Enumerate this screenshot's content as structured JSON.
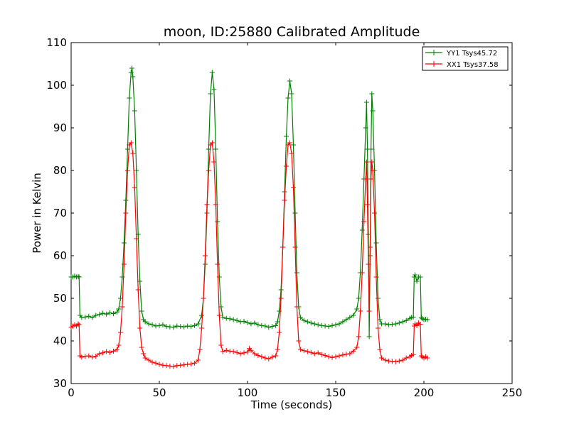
{
  "chart_data": {
    "type": "line",
    "title": "moon, ID:25880 Calibrated Amplitude",
    "xlabel": "Time (seconds)",
    "ylabel": "Power in Kelvin",
    "xlim": [
      0,
      250
    ],
    "ylim": [
      30,
      110
    ],
    "xticks": [
      "0",
      "50",
      "100",
      "150",
      "200",
      "250"
    ],
    "yticks": [
      "30",
      "40",
      "50",
      "60",
      "70",
      "80",
      "90",
      "100",
      "110"
    ],
    "grid": false,
    "legend_position": "top-right",
    "series": [
      {
        "name": "YY1 Tsys45.72",
        "color": "#008000",
        "marker": "+",
        "points": [
          [
            0,
            55
          ],
          [
            1,
            55
          ],
          [
            2,
            55.2
          ],
          [
            3,
            55
          ],
          [
            4,
            55.1
          ],
          [
            4.5,
            55
          ],
          [
            5,
            46
          ],
          [
            6,
            45.5
          ],
          [
            8,
            45.6
          ],
          [
            10,
            45.8
          ],
          [
            12,
            45.5
          ],
          [
            14,
            46
          ],
          [
            16,
            46.2
          ],
          [
            18,
            46.5
          ],
          [
            20,
            46.3
          ],
          [
            22,
            46.6
          ],
          [
            24,
            46.4
          ],
          [
            26,
            46.8
          ],
          [
            27,
            47.5
          ],
          [
            28,
            50
          ],
          [
            29,
            55
          ],
          [
            30,
            63
          ],
          [
            31,
            73
          ],
          [
            32,
            85
          ],
          [
            33,
            97
          ],
          [
            34,
            103
          ],
          [
            34.5,
            104
          ],
          [
            35,
            102
          ],
          [
            36,
            94
          ],
          [
            37,
            80
          ],
          [
            38,
            65
          ],
          [
            39,
            54
          ],
          [
            40,
            47
          ],
          [
            41,
            45
          ],
          [
            42,
            44.5
          ],
          [
            44,
            44
          ],
          [
            46,
            43.8
          ],
          [
            48,
            43.5
          ],
          [
            50,
            43.6
          ],
          [
            52,
            43.8
          ],
          [
            54,
            43.4
          ],
          [
            56,
            43.3
          ],
          [
            58,
            43.2
          ],
          [
            60,
            43.5
          ],
          [
            62,
            43.4
          ],
          [
            64,
            43.3
          ],
          [
            66,
            43.5
          ],
          [
            68,
            43.4
          ],
          [
            70,
            43.6
          ],
          [
            72,
            44
          ],
          [
            74,
            46
          ],
          [
            75,
            50
          ],
          [
            76,
            58
          ],
          [
            77,
            70
          ],
          [
            78,
            85
          ],
          [
            79,
            98
          ],
          [
            80,
            103
          ],
          [
            81,
            99
          ],
          [
            82,
            85
          ],
          [
            83,
            68
          ],
          [
            84,
            55
          ],
          [
            85,
            48
          ],
          [
            86,
            45.5
          ],
          [
            88,
            45.3
          ],
          [
            90,
            45.2
          ],
          [
            92,
            45
          ],
          [
            94,
            44.8
          ],
          [
            96,
            44.5
          ],
          [
            98,
            44.6
          ],
          [
            100,
            44.3
          ],
          [
            102,
            44
          ],
          [
            104,
            44.2
          ],
          [
            106,
            43.8
          ],
          [
            108,
            43.6
          ],
          [
            110,
            43.5
          ],
          [
            112,
            43.2
          ],
          [
            114,
            43.4
          ],
          [
            116,
            43.6
          ],
          [
            117,
            44.5
          ],
          [
            118,
            47
          ],
          [
            119,
            52
          ],
          [
            120,
            62
          ],
          [
            121,
            75
          ],
          [
            122,
            88
          ],
          [
            123,
            97
          ],
          [
            124,
            101
          ],
          [
            125,
            98
          ],
          [
            126,
            86
          ],
          [
            127,
            70
          ],
          [
            128,
            56
          ],
          [
            129,
            48
          ],
          [
            130,
            45.5
          ],
          [
            132,
            44.8
          ],
          [
            134,
            44.5
          ],
          [
            136,
            44.2
          ],
          [
            138,
            44
          ],
          [
            140,
            43.8
          ],
          [
            142,
            43.6
          ],
          [
            144,
            43.5
          ],
          [
            146,
            43.4
          ],
          [
            148,
            43.6
          ],
          [
            150,
            43.8
          ],
          [
            152,
            44
          ],
          [
            154,
            44.5
          ],
          [
            156,
            45
          ],
          [
            158,
            45.5
          ],
          [
            160,
            46
          ],
          [
            162,
            47.5
          ],
          [
            163,
            50
          ],
          [
            164,
            56
          ],
          [
            165,
            66
          ],
          [
            166,
            78
          ],
          [
            167,
            90
          ],
          [
            167.5,
            96
          ],
          [
            168,
            85
          ],
          [
            168.5,
            65
          ],
          [
            169,
            41
          ],
          [
            169.5,
            60
          ],
          [
            170,
            85
          ],
          [
            170.5,
            98
          ],
          [
            171,
            94
          ],
          [
            172,
            80
          ],
          [
            173,
            63
          ],
          [
            174,
            50
          ],
          [
            175,
            45
          ],
          [
            176,
            44
          ],
          [
            178,
            44
          ],
          [
            180,
            43.8
          ],
          [
            182,
            43.9
          ],
          [
            184,
            44
          ],
          [
            186,
            44.2
          ],
          [
            188,
            44.5
          ],
          [
            190,
            44.8
          ],
          [
            192,
            45.3
          ],
          [
            193,
            45.5
          ],
          [
            194,
            45.6
          ],
          [
            194.5,
            55
          ],
          [
            195,
            55.5
          ],
          [
            196,
            54
          ],
          [
            197,
            55
          ],
          [
            198,
            55
          ],
          [
            198.5,
            45.5
          ],
          [
            199,
            45.2
          ],
          [
            200,
            45
          ],
          [
            201,
            45.1
          ],
          [
            202,
            45
          ]
        ]
      },
      {
        "name": "XX1 Tsys37.58",
        "color": "#ff0000",
        "marker": "+",
        "points": [
          [
            0,
            43.2
          ],
          [
            1,
            43.5
          ],
          [
            2,
            43.8
          ],
          [
            3,
            43.5
          ],
          [
            4,
            44
          ],
          [
            4.5,
            43.8
          ],
          [
            5,
            36.5
          ],
          [
            6,
            36.2
          ],
          [
            8,
            36.4
          ],
          [
            10,
            36.5
          ],
          [
            12,
            36.2
          ],
          [
            14,
            36.4
          ],
          [
            16,
            37
          ],
          [
            18,
            37.2
          ],
          [
            20,
            37.5
          ],
          [
            22,
            37.3
          ],
          [
            24,
            37.6
          ],
          [
            26,
            38
          ],
          [
            27,
            39
          ],
          [
            28,
            42
          ],
          [
            29,
            48
          ],
          [
            30,
            58
          ],
          [
            31,
            70
          ],
          [
            32,
            80
          ],
          [
            33,
            86
          ],
          [
            34,
            86.5
          ],
          [
            35,
            84
          ],
          [
            36,
            76
          ],
          [
            37,
            64
          ],
          [
            38,
            52
          ],
          [
            39,
            43
          ],
          [
            40,
            38.5
          ],
          [
            41,
            37
          ],
          [
            42,
            36
          ],
          [
            44,
            35.5
          ],
          [
            46,
            35
          ],
          [
            48,
            34.8
          ],
          [
            50,
            34.5
          ],
          [
            52,
            34.3
          ],
          [
            54,
            34.2
          ],
          [
            56,
            34.1
          ],
          [
            58,
            34
          ],
          [
            60,
            34.2
          ],
          [
            62,
            34.3
          ],
          [
            64,
            34.4
          ],
          [
            66,
            34.5
          ],
          [
            68,
            34.6
          ],
          [
            70,
            34.8
          ],
          [
            72,
            35.5
          ],
          [
            73,
            38
          ],
          [
            74,
            43
          ],
          [
            75,
            50
          ],
          [
            76,
            60
          ],
          [
            77,
            72
          ],
          [
            78,
            80
          ],
          [
            79,
            86
          ],
          [
            80,
            86.5
          ],
          [
            81,
            82
          ],
          [
            82,
            72
          ],
          [
            83,
            58
          ],
          [
            84,
            46
          ],
          [
            85,
            39
          ],
          [
            86,
            37.5
          ],
          [
            88,
            37.8
          ],
          [
            90,
            37.6
          ],
          [
            92,
            37.5
          ],
          [
            94,
            37.3
          ],
          [
            96,
            37
          ],
          [
            98,
            37.2
          ],
          [
            100,
            37.4
          ],
          [
            101,
            38.2
          ],
          [
            102,
            37.8
          ],
          [
            104,
            37
          ],
          [
            106,
            36.6
          ],
          [
            108,
            36.3
          ],
          [
            110,
            36
          ],
          [
            112,
            35.8
          ],
          [
            114,
            36.2
          ],
          [
            116,
            36.5
          ],
          [
            117,
            38
          ],
          [
            118,
            42
          ],
          [
            119,
            50
          ],
          [
            120,
            62
          ],
          [
            121,
            73
          ],
          [
            122,
            81
          ],
          [
            123,
            86
          ],
          [
            124,
            86.5
          ],
          [
            125,
            84
          ],
          [
            126,
            76
          ],
          [
            127,
            62
          ],
          [
            128,
            48
          ],
          [
            129,
            40
          ],
          [
            130,
            38
          ],
          [
            132,
            37.7
          ],
          [
            134,
            37.5
          ],
          [
            136,
            37.3
          ],
          [
            138,
            37
          ],
          [
            140,
            37.2
          ],
          [
            142,
            36.8
          ],
          [
            144,
            36.6
          ],
          [
            146,
            36.3
          ],
          [
            148,
            36.1
          ],
          [
            150,
            36.3
          ],
          [
            152,
            36.5
          ],
          [
            154,
            36.7
          ],
          [
            156,
            36.9
          ],
          [
            158,
            37
          ],
          [
            160,
            37.6
          ],
          [
            162,
            38.5
          ],
          [
            163,
            41
          ],
          [
            164,
            47
          ],
          [
            165,
            56
          ],
          [
            166,
            68
          ],
          [
            167,
            78
          ],
          [
            167.5,
            82
          ],
          [
            168,
            72
          ],
          [
            168.5,
            58
          ],
          [
            169,
            47
          ],
          [
            169.5,
            62
          ],
          [
            170,
            78
          ],
          [
            170.5,
            82
          ],
          [
            171,
            80
          ],
          [
            172,
            70
          ],
          [
            173,
            55
          ],
          [
            174,
            43
          ],
          [
            175,
            38
          ],
          [
            176,
            36
          ],
          [
            178,
            35.5
          ],
          [
            180,
            35.3
          ],
          [
            182,
            35.2
          ],
          [
            184,
            35.1
          ],
          [
            186,
            35.3
          ],
          [
            188,
            35.5
          ],
          [
            190,
            36
          ],
          [
            192,
            36.3
          ],
          [
            193,
            36.6
          ],
          [
            194,
            36.8
          ],
          [
            194.5,
            43.5
          ],
          [
            195,
            44
          ],
          [
            196,
            43.6
          ],
          [
            197,
            44.2
          ],
          [
            198,
            43.9
          ],
          [
            198.5,
            36.5
          ],
          [
            199,
            36.2
          ],
          [
            200,
            36
          ],
          [
            201,
            36.3
          ],
          [
            202,
            36
          ]
        ]
      }
    ]
  }
}
